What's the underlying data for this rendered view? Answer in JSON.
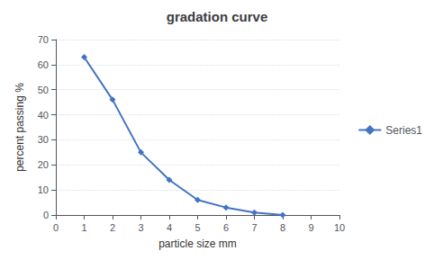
{
  "chart_data": {
    "type": "line",
    "title": "gradation curve",
    "xlabel": "particle size mm",
    "ylabel": "percent passing %",
    "x": [
      1,
      2,
      3,
      4,
      5,
      6,
      7,
      8
    ],
    "series": [
      {
        "name": "Series1",
        "color": "#4472C4",
        "marker": "diamond",
        "values": [
          63,
          46,
          25,
          14,
          6,
          3,
          1,
          0
        ]
      }
    ],
    "xlim": [
      0,
      10
    ],
    "ylim": [
      0,
      70
    ],
    "xticks": [
      0,
      1,
      2,
      3,
      4,
      5,
      6,
      7,
      8,
      9,
      10
    ],
    "yticks": [
      0,
      10,
      20,
      30,
      40,
      50,
      60,
      70
    ],
    "grid": "y",
    "legend": "right"
  }
}
